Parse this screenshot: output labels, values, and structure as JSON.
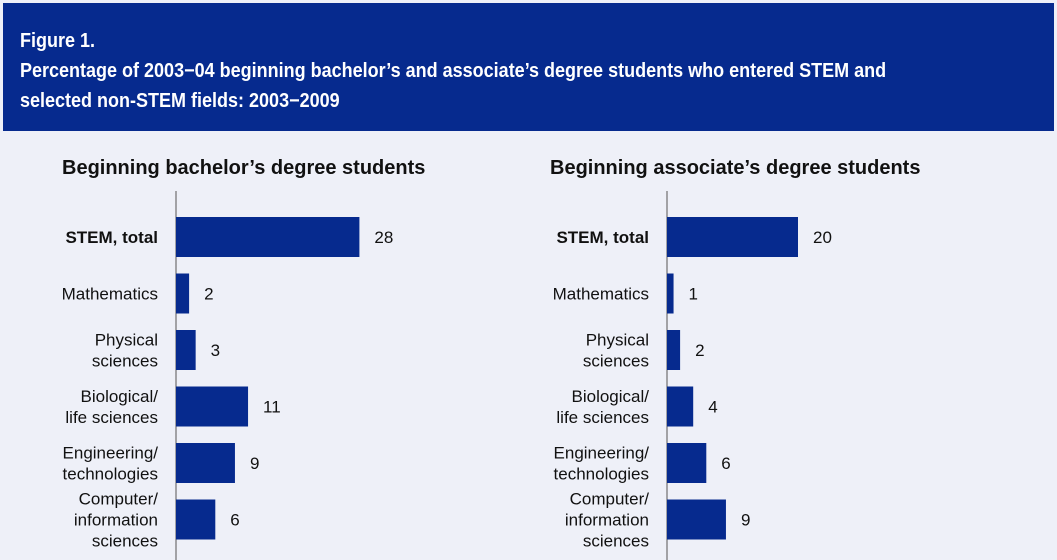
{
  "figure": {
    "label": "Figure 1.",
    "title_line1": "Percentage of 2003−04 beginning bachelor’s and associate’s degree students who entered STEM and",
    "title_line2": "selected non-STEM fields: 2003−2009"
  },
  "colors": {
    "header_bg": "#062a8e",
    "bar": "#062a8e",
    "background": "#eef0f8"
  },
  "chart_data": [
    {
      "type": "bar",
      "orientation": "horizontal",
      "title": "Beginning bachelor’s degree students",
      "categories": [
        [
          "STEM, total"
        ],
        [
          "Mathematics"
        ],
        [
          "Physical",
          "sciences"
        ],
        [
          "Biological/",
          "life sciences"
        ],
        [
          "Engineering/",
          "technologies"
        ],
        [
          "Computer/",
          "information",
          "sciences"
        ]
      ],
      "values": [
        28,
        2,
        3,
        11,
        9,
        6
      ],
      "xlim": [
        0,
        35
      ]
    },
    {
      "type": "bar",
      "orientation": "horizontal",
      "title": "Beginning associate’s degree students",
      "categories": [
        [
          "STEM, total"
        ],
        [
          "Mathematics"
        ],
        [
          "Physical",
          "sciences"
        ],
        [
          "Biological/",
          "life sciences"
        ],
        [
          "Engineering/",
          "technologies"
        ],
        [
          "Computer/",
          "information",
          "sciences"
        ]
      ],
      "values": [
        20,
        1,
        2,
        4,
        6,
        9
      ],
      "xlim": [
        0,
        35
      ]
    }
  ]
}
